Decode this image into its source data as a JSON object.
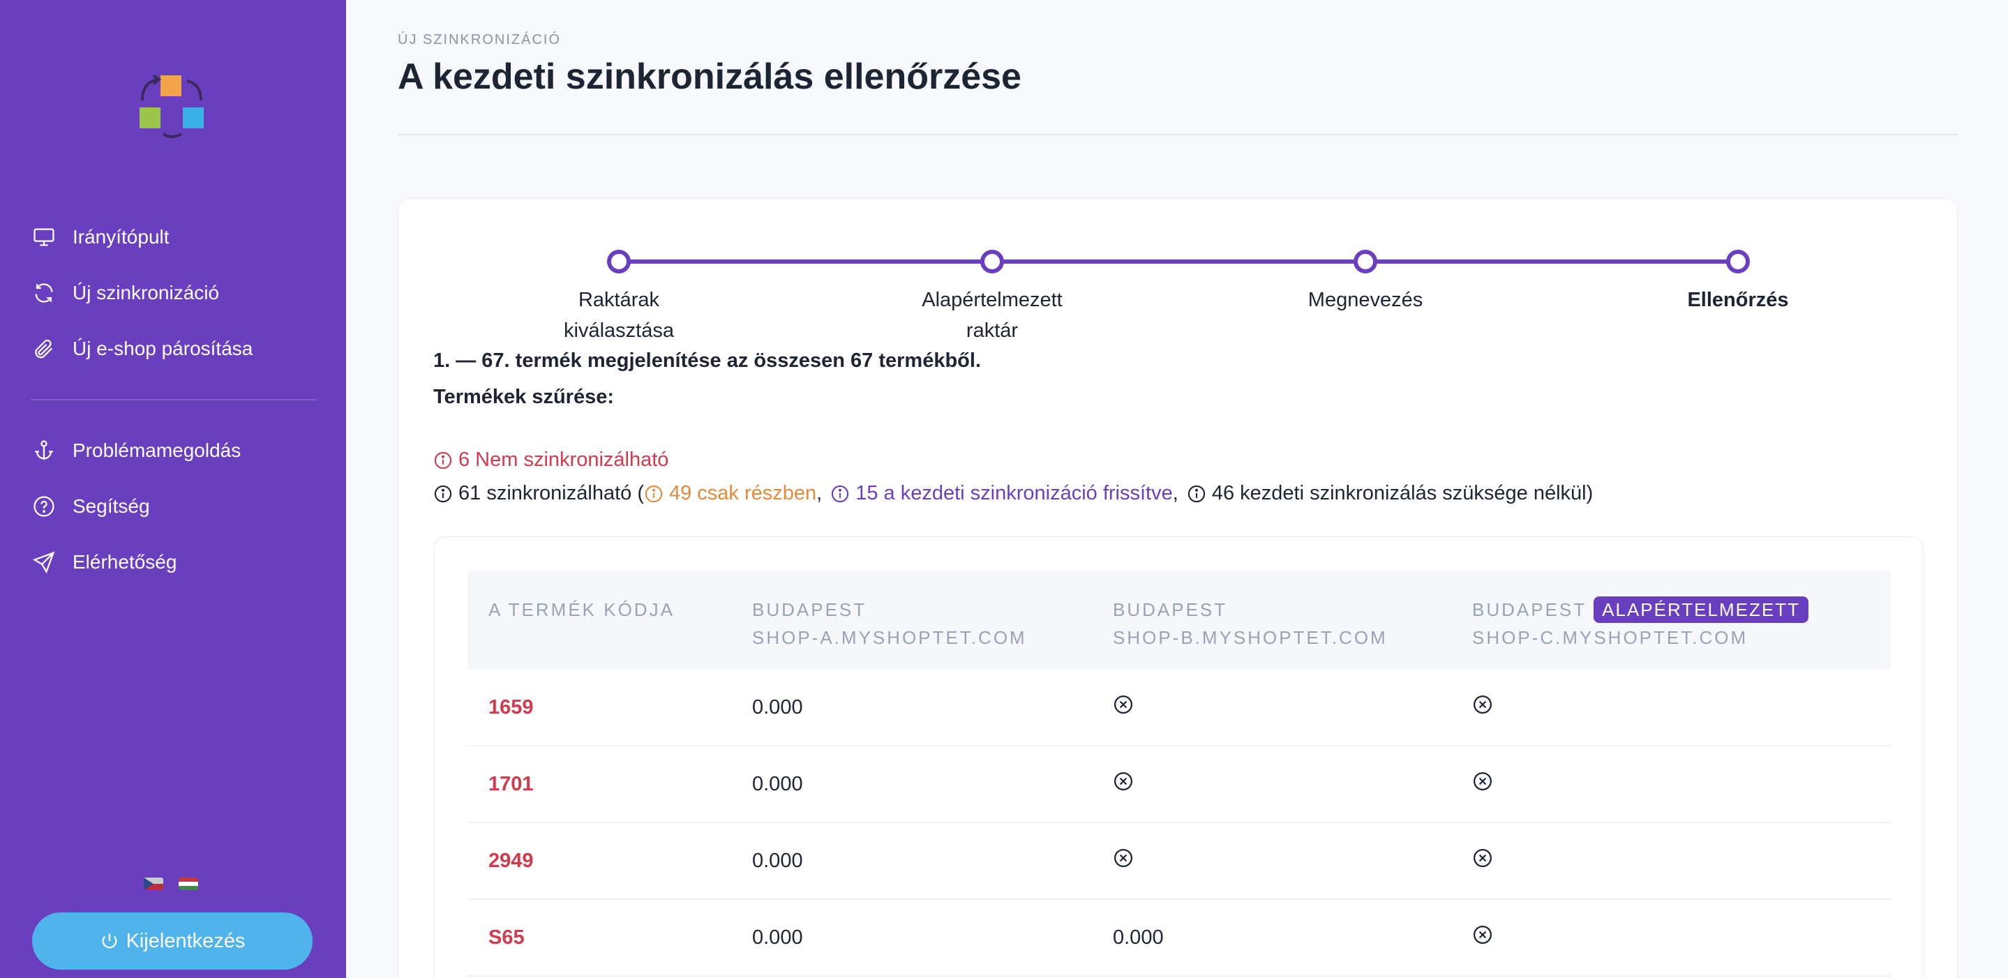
{
  "sidebar": {
    "items": [
      {
        "label": "Irányítópult"
      },
      {
        "label": "Új szinkronizáció"
      },
      {
        "label": "Új e-shop párosítása"
      },
      {
        "label": "Problémamegoldás"
      },
      {
        "label": "Segítség"
      },
      {
        "label": "Elérhetőség"
      }
    ],
    "logout_label": "Kijelentkezés"
  },
  "header": {
    "eyebrow": "ÚJ SZINKRONIZÁCIÓ",
    "title": "A kezdeti szinkronizálás ellenőrzése"
  },
  "stepper": {
    "steps": [
      {
        "line1": "Raktárak",
        "line2": "kiválasztása"
      },
      {
        "line1": "Alapértelmezett",
        "line2": "raktár"
      },
      {
        "line1": "Megnevezés",
        "line2": ""
      },
      {
        "line1": "Ellenőrzés",
        "line2": ""
      }
    ]
  },
  "summary": {
    "text": "1. — 67. termék megjelenítése az összesen 67 termékből.",
    "filter_title": "Termékek szűrése:",
    "not_syncable": "6 Nem szinkronizálható",
    "syncable_prefix": "61 szinkronizálható (",
    "partial": "49 csak részben",
    "sep1": ",",
    "updated": "15 a kezdeti szinkronizáció frissítve",
    "sep2": ",",
    "no_need": "46 kezdeti szinkronizálás szüksége nélkül)"
  },
  "table": {
    "headers": {
      "code": "A TERMÉK KÓDJA",
      "col_a_city": "BUDAPEST",
      "col_a_shop": "SHOP-A.MYSHOPTET.COM",
      "col_b_city": "BUDAPEST",
      "col_b_shop": "SHOP-B.MYSHOPTET.COM",
      "col_c_city": "BUDAPEST",
      "col_c_badge": "ALAPÉRTELMEZETT",
      "col_c_shop": "SHOP-C.MYSHOPTET.COM"
    },
    "rows": [
      {
        "code": "1659",
        "a": "0.000",
        "b": "",
        "c": ""
      },
      {
        "code": "1701",
        "a": "0.000",
        "b": "",
        "c": ""
      },
      {
        "code": "2949",
        "a": "0.000",
        "b": "",
        "c": ""
      },
      {
        "code": "S65",
        "a": "0.000",
        "b": "0.000",
        "c": ""
      }
    ]
  }
}
